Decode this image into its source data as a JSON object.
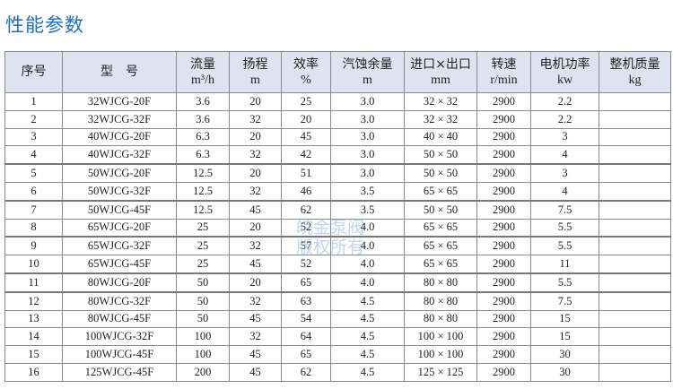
{
  "title": "性能参数",
  "watermark": [
    "皖金泵阀",
    "版权所有"
  ],
  "colors": {
    "title": "#1b6fc2",
    "header_bg": "#dde4ef"
  },
  "headers": [
    {
      "label": "序号",
      "unit": ""
    },
    {
      "label": "型　号",
      "unit": ""
    },
    {
      "label": "流量",
      "unit": "m³/h"
    },
    {
      "label": "扬程",
      "unit": "m"
    },
    {
      "label": "效率",
      "unit": "%"
    },
    {
      "label": "汽蚀余量",
      "unit": "m"
    },
    {
      "label": "进口×出口",
      "unit": "mm"
    },
    {
      "label": "转速",
      "unit": "r/min"
    },
    {
      "label": "电机功率",
      "unit": "kw"
    },
    {
      "label": "整机质量",
      "unit": "kg"
    }
  ],
  "rows": [
    [
      "1",
      "32WJCG-20F",
      "3.6",
      "20",
      "25",
      "3.0",
      "32 × 32",
      "2900",
      "2.2",
      ""
    ],
    [
      "2",
      "32WJCG-32F",
      "3.6",
      "32",
      "20",
      "3.0",
      "32 × 32",
      "2900",
      "2.2",
      ""
    ],
    [
      "3",
      "40WJCG-20F",
      "6.3",
      "20",
      "45",
      "3.0",
      "40 × 40",
      "2900",
      "3",
      ""
    ],
    [
      "4",
      "40WJCG-32F",
      "6.3",
      "32",
      "42",
      "3.0",
      "50 × 50",
      "2900",
      "4",
      ""
    ],
    [
      "5",
      "50WJCG-20F",
      "12.5",
      "20",
      "51",
      "3.0",
      "50 × 50",
      "2900",
      "3",
      ""
    ],
    [
      "6",
      "50WJCG-32F",
      "12.5",
      "32",
      "46",
      "3.5",
      "65 × 65",
      "2900",
      "4",
      ""
    ],
    [
      "7",
      "50WJCG-45F",
      "12.5",
      "45",
      "62",
      "3.5",
      "50 × 50",
      "2900",
      "7.5",
      ""
    ],
    [
      "8",
      "65WJCG-20F",
      "25",
      "20",
      "52",
      "4.0",
      "65 × 65",
      "2900",
      "5.5",
      ""
    ],
    [
      "9",
      "65WJCG-32F",
      "25",
      "32",
      "57",
      "4.0",
      "65 × 65",
      "2900",
      "5.5",
      ""
    ],
    [
      "10",
      "65WJCG-45F",
      "25",
      "45",
      "52",
      "4.0",
      "65 × 65",
      "2900",
      "11",
      ""
    ],
    [
      "11",
      "80WJCG-20F",
      "50",
      "20",
      "65",
      "4.0",
      "80 × 80",
      "2900",
      "5.5",
      ""
    ],
    [
      "12",
      "80WJCG-32F",
      "50",
      "32",
      "63",
      "4.5",
      "80 × 80",
      "2900",
      "7.5",
      ""
    ],
    [
      "13",
      "80WJCG-45F",
      "50",
      "45",
      "54",
      "4.5",
      "80 × 80",
      "2900",
      "15",
      ""
    ],
    [
      "14",
      "100WJCG-32F",
      "100",
      "32",
      "64",
      "4.5",
      "100 × 100",
      "2900",
      "15",
      ""
    ],
    [
      "15",
      "100WJCG-45F",
      "100",
      "45",
      "65",
      "4.5",
      "100 × 100",
      "2900",
      "30",
      ""
    ],
    [
      "16",
      "125WJCG-45F",
      "200",
      "45",
      "62",
      "4.5",
      "125 × 125",
      "2900",
      "30",
      ""
    ]
  ]
}
